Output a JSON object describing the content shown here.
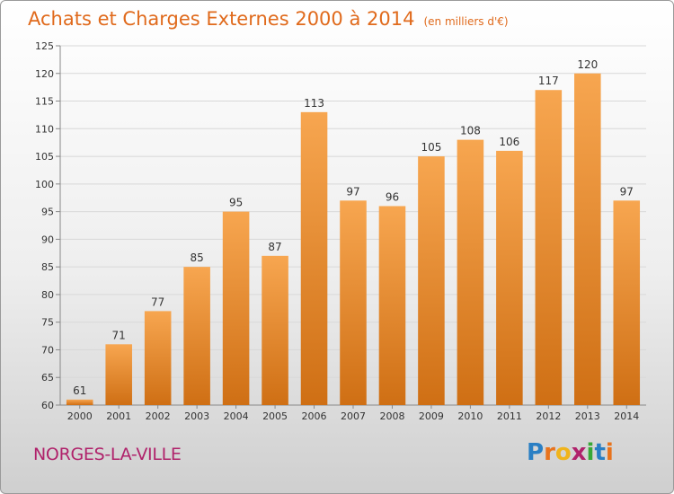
{
  "header": {
    "title": "Achats et Charges Externes 2000 à 2014",
    "subtitle": "(en milliers d'€)"
  },
  "footer": {
    "commune": "NORGES-LA-VILLE",
    "logo_letters": [
      "P",
      "r",
      "o",
      "x",
      "i",
      "t",
      "i"
    ],
    "logo_colors": [
      "#2a7fc4",
      "#e8731c",
      "#f0b41c",
      "#b0226b",
      "#38a836",
      "#2a7fc4",
      "#e8731c"
    ]
  },
  "chart_data": {
    "type": "bar",
    "categories": [
      "2000",
      "2001",
      "2002",
      "2003",
      "2004",
      "2005",
      "2006",
      "2007",
      "2008",
      "2009",
      "2010",
      "2011",
      "2012",
      "2013",
      "2014"
    ],
    "values": [
      61,
      71,
      77,
      85,
      95,
      87,
      113,
      97,
      96,
      105,
      108,
      106,
      117,
      120,
      97
    ],
    "ylim": [
      60,
      125
    ],
    "yticks": [
      60,
      65,
      70,
      75,
      80,
      85,
      90,
      95,
      100,
      105,
      110,
      115,
      120,
      125
    ],
    "grid": true,
    "bar_color_top": "#f7a650",
    "bar_color_bottom": "#cf6f14"
  }
}
